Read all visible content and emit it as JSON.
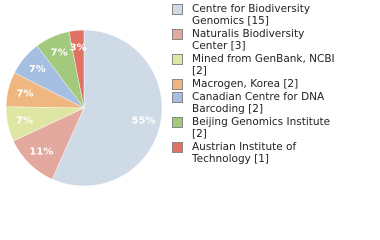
{
  "chart_data": {
    "type": "pie",
    "categories": [
      "Centre for Biodiversity Genomics [15]",
      "Naturalis Biodiversity Center [3]",
      "Mined from GenBank, NCBI [2]",
      "Macrogen, Korea [2]",
      "Canadian Centre for DNA Barcoding [2]",
      "Beijing Genomics Institute [2]",
      "Austrian Institute of Technology [1]"
    ],
    "values": [
      55,
      11,
      7,
      7,
      7,
      7,
      3
    ],
    "value_labels": [
      "55%",
      "11%",
      "7%",
      "7%",
      "7%",
      "7%",
      "3%"
    ],
    "colors": [
      "#cfdae7",
      "#e3a89e",
      "#dfe5a2",
      "#f0b680",
      "#a4bfe2",
      "#a2c97c",
      "#df7262"
    ],
    "legend": "right"
  }
}
